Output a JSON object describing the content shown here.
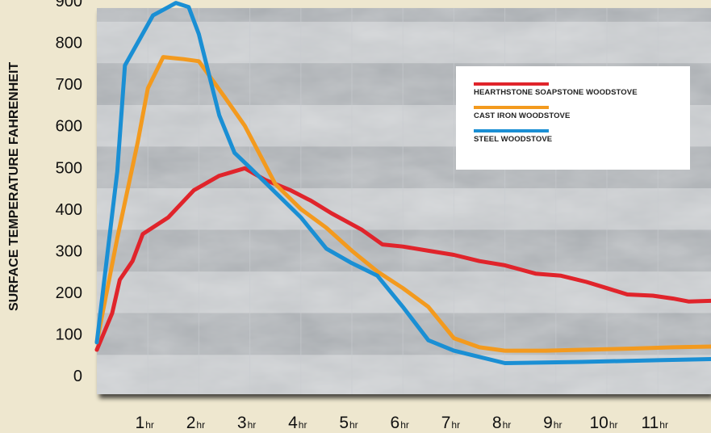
{
  "chart_data": {
    "type": "line",
    "title": "",
    "ylabel": "SURFACE TEMPERATURE FAHRENHEIT",
    "xlabel": "",
    "ylim": [
      0,
      900
    ],
    "xlim": [
      0,
      12.1
    ],
    "y_ticks": [
      "0",
      "100",
      "200",
      "300",
      "400",
      "500",
      "600",
      "700",
      "800",
      "900"
    ],
    "x_ticks": [
      {
        "value": 1,
        "num": "1",
        "unit": "hr"
      },
      {
        "value": 2,
        "num": "2",
        "unit": "hr"
      },
      {
        "value": 3,
        "num": "3",
        "unit": "hr"
      },
      {
        "value": 4,
        "num": "4",
        "unit": "hr"
      },
      {
        "value": 5,
        "num": "5",
        "unit": "hr"
      },
      {
        "value": 6,
        "num": "6",
        "unit": "hr"
      },
      {
        "value": 7,
        "num": "7",
        "unit": "hr"
      },
      {
        "value": 8,
        "num": "8",
        "unit": "hr"
      },
      {
        "value": 9,
        "num": "9",
        "unit": "hr"
      },
      {
        "value": 10,
        "num": "10",
        "unit": "hr"
      },
      {
        "value": 11,
        "num": "11",
        "unit": "hr"
      }
    ],
    "legend_position": "top-right",
    "series": [
      {
        "name": "HEARTHSTONE SOAPSTONE WOODSTOVE",
        "color": "#e0242b",
        "points": [
          [
            0,
            62
          ],
          [
            0.3,
            150
          ],
          [
            0.45,
            230
          ],
          [
            0.7,
            275
          ],
          [
            0.9,
            340
          ],
          [
            1.4,
            380
          ],
          [
            1.9,
            445
          ],
          [
            2.4,
            480
          ],
          [
            2.9,
            498
          ],
          [
            3.3,
            470
          ],
          [
            3.8,
            445
          ],
          [
            4.2,
            420
          ],
          [
            4.6,
            390
          ],
          [
            5.2,
            350
          ],
          [
            5.6,
            315
          ],
          [
            6.0,
            310
          ],
          [
            6.5,
            300
          ],
          [
            7.0,
            290
          ],
          [
            7.5,
            275
          ],
          [
            8.0,
            265
          ],
          [
            8.6,
            245
          ],
          [
            9.1,
            240
          ],
          [
            9.6,
            225
          ],
          [
            10.0,
            210
          ],
          [
            10.4,
            195
          ],
          [
            10.9,
            192
          ],
          [
            11.3,
            185
          ],
          [
            11.6,
            178
          ],
          [
            12.1,
            180
          ]
        ]
      },
      {
        "name": "CAST IRON WOODSTOVE",
        "color": "#f39a1e",
        "points": [
          [
            0,
            80
          ],
          [
            0.4,
            330
          ],
          [
            0.8,
            560
          ],
          [
            1.0,
            690
          ],
          [
            1.3,
            765
          ],
          [
            1.7,
            760
          ],
          [
            2.0,
            755
          ],
          [
            2.5,
            670
          ],
          [
            2.9,
            600
          ],
          [
            3.5,
            460
          ],
          [
            4.0,
            400
          ],
          [
            4.5,
            355
          ],
          [
            5.0,
            300
          ],
          [
            5.5,
            250
          ],
          [
            6.0,
            210
          ],
          [
            6.5,
            165
          ],
          [
            7.0,
            90
          ],
          [
            7.5,
            68
          ],
          [
            8.0,
            60
          ],
          [
            8.8,
            60
          ],
          [
            9.5,
            62
          ],
          [
            10.5,
            65
          ],
          [
            11.3,
            68
          ],
          [
            12.1,
            70
          ]
        ]
      },
      {
        "name": "STEEL WOODSTOVE",
        "color": "#1a8fd4",
        "points": [
          [
            0,
            80
          ],
          [
            0.4,
            490
          ],
          [
            0.55,
            745
          ],
          [
            0.85,
            810
          ],
          [
            1.1,
            865
          ],
          [
            1.4,
            885
          ],
          [
            1.55,
            895
          ],
          [
            1.8,
            885
          ],
          [
            2.0,
            820
          ],
          [
            2.4,
            625
          ],
          [
            2.7,
            535
          ],
          [
            3.0,
            500
          ],
          [
            3.5,
            440
          ],
          [
            4.0,
            380
          ],
          [
            4.5,
            305
          ],
          [
            5.0,
            270
          ],
          [
            5.5,
            240
          ],
          [
            6.0,
            165
          ],
          [
            6.5,
            85
          ],
          [
            7.0,
            60
          ],
          [
            7.5,
            45
          ],
          [
            8.0,
            30
          ],
          [
            9.5,
            33
          ],
          [
            11.0,
            37
          ],
          [
            12.1,
            40
          ]
        ]
      }
    ]
  }
}
